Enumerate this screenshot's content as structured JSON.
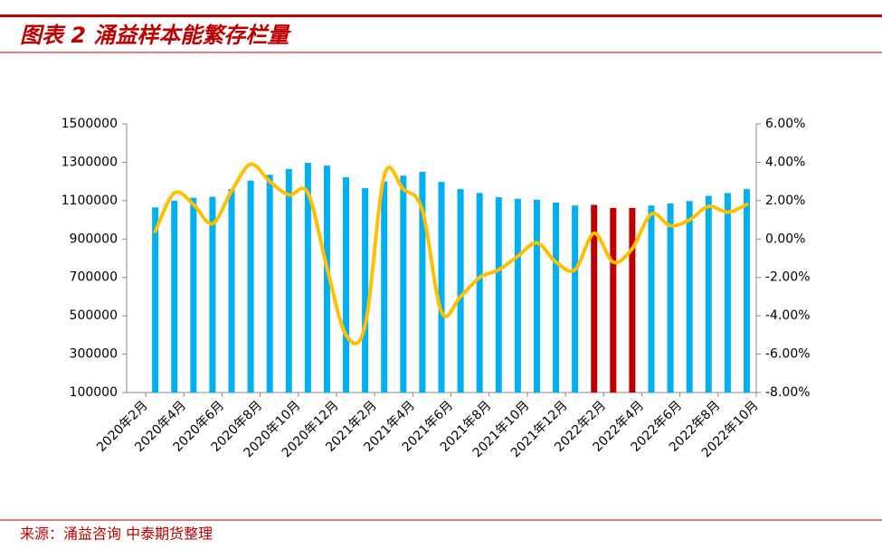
{
  "chart_data": {
    "type": "bar_line",
    "title": "图表 2 涌益样本能繁存栏量",
    "source": "来源：涌益咨询 中泰期货整理",
    "categories": [
      "2020年2月",
      null,
      "2020年4月",
      null,
      "2020年6月",
      null,
      "2020年8月",
      null,
      "2020年10月",
      null,
      "2020年12月",
      null,
      "2021年2月",
      null,
      "2021年4月",
      null,
      "2021年6月",
      null,
      "2021年8月",
      null,
      "2021年10月",
      null,
      "2021年12月",
      null,
      "2022年2月",
      null,
      "2022年4月",
      null,
      "2022年6月",
      null,
      "2022年8月",
      null,
      "2022年10月"
    ],
    "series": [
      {
        "type": "bar",
        "color": "#00b0f0",
        "colors": [
          null,
          "#00b0f0",
          "#00b0f0",
          "#00b0f0",
          "#00b0f0",
          "#00b0f0",
          "#00b0f0",
          "#00b0f0",
          "#00b0f0",
          "#00b0f0",
          "#00b0f0",
          "#00b0f0",
          "#00b0f0",
          "#00b0f0",
          "#00b0f0",
          "#00b0f0",
          "#00b0f0",
          "#00b0f0",
          "#00b0f0",
          "#00b0f0",
          "#00b0f0",
          "#00b0f0",
          "#00b0f0",
          "#00b0f0",
          "#c00000",
          "#c00000",
          "#c00000",
          "#00b0f0",
          "#00b0f0",
          "#00b0f0",
          "#00b0f0",
          "#00b0f0",
          "#00b0f0"
        ],
        "values": [
          null,
          1065000,
          1100000,
          1115000,
          1120000,
          1160000,
          1205000,
          1235000,
          1265000,
          1297000,
          1283000,
          1222000,
          1165000,
          1200000,
          1230000,
          1250000,
          1198000,
          1160000,
          1140000,
          1118000,
          1110000,
          1105000,
          1090000,
          1075000,
          1078000,
          1062000,
          1062000,
          1075000,
          1085000,
          1098000,
          1125000,
          1140000,
          1160000
        ]
      },
      {
        "type": "line",
        "axis": "y2",
        "color": "#ffc000",
        "values": [
          null,
          0.4,
          2.4,
          1.8,
          0.8,
          2.5,
          3.9,
          3.0,
          2.3,
          2.4,
          -1.5,
          -5.0,
          -4.5,
          3.3,
          2.6,
          1.5,
          -3.8,
          -3.0,
          -2.0,
          -1.6,
          -0.9,
          -0.2,
          -1.2,
          -1.6,
          0.3,
          -1.2,
          -0.5,
          1.3,
          0.7,
          1.0,
          1.7,
          1.4,
          1.8
        ]
      }
    ],
    "ylim": [
      100000,
      1500000
    ],
    "yticks": [
      100000,
      300000,
      500000,
      700000,
      900000,
      1100000,
      1300000,
      1500000
    ],
    "y2lim": [
      -8,
      6
    ],
    "y2ticks": [
      {
        "value": -8,
        "label": "-8.00%"
      },
      {
        "value": -6,
        "label": "-6.00%"
      },
      {
        "value": -4,
        "label": "-4.00%"
      },
      {
        "value": -2,
        "label": "-2.00%"
      },
      {
        "value": 0,
        "label": "0.00%"
      },
      {
        "value": 2,
        "label": "2.00%"
      },
      {
        "value": 4,
        "label": "4.00%"
      },
      {
        "value": 6,
        "label": "6.00%"
      }
    ],
    "grid": false
  }
}
